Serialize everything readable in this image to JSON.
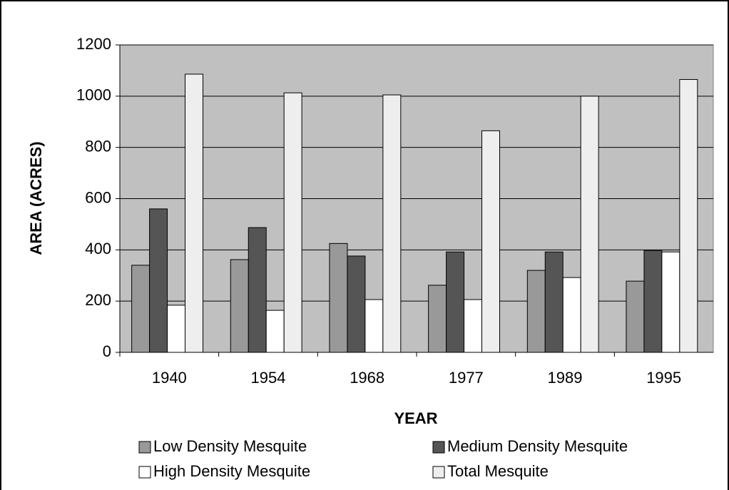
{
  "chart_data": {
    "type": "bar",
    "ylabel": "AREA (ACRES)",
    "xlabel": "YEAR",
    "categories": [
      "1940",
      "1954",
      "1968",
      "1977",
      "1989",
      "1995"
    ],
    "series": [
      {
        "name": "Low Density Mesquite",
        "color": "#999999",
        "values": [
          340,
          362,
          425,
          262,
          320,
          278
        ]
      },
      {
        "name": "Medium Density Mesquite",
        "color": "#555555",
        "values": [
          560,
          487,
          376,
          392,
          392,
          398
        ]
      },
      {
        "name": "High Density Mesquite",
        "color": "#ffffff",
        "values": [
          184,
          164,
          206,
          206,
          292,
          392
        ]
      },
      {
        "name": "Total Mesquite",
        "color": "#eeeeee",
        "values": [
          1086,
          1013,
          1005,
          865,
          1000,
          1065
        ]
      }
    ],
    "ylim": [
      0,
      1200
    ],
    "yticks": [
      0,
      200,
      400,
      600,
      800,
      1000,
      1200
    ],
    "grid": true
  }
}
